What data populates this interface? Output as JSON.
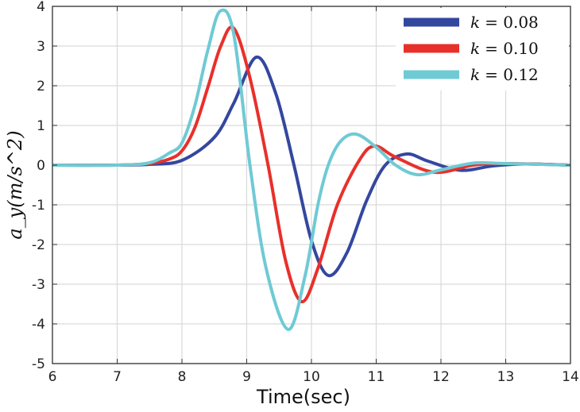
{
  "chart_data": {
    "type": "line",
    "title": "",
    "xlabel": "Time(sec)",
    "ylabel": "a_y(m/s^2)",
    "ylabel_parts": {
      "main": "a",
      "sub": "y",
      "unit": "(m/s",
      "sup": "2",
      "close": ")"
    },
    "xlim": [
      6,
      14
    ],
    "ylim": [
      -5,
      4
    ],
    "xticks": [
      6,
      7,
      8,
      9,
      10,
      11,
      12,
      13,
      14
    ],
    "yticks": [
      -5,
      -4,
      -3,
      -2,
      -1,
      0,
      1,
      2,
      3,
      4
    ],
    "grid": true,
    "legend_position": "top-right",
    "series": [
      {
        "name": "k = 0.08",
        "legend_var": "k",
        "legend_value": "= 0.08",
        "color": "#34479f",
        "x": [
          6,
          7,
          7.5,
          8,
          8.5,
          8.8,
          9.15,
          9.45,
          9.73,
          10.0,
          10.26,
          10.55,
          10.85,
          11.14,
          11.47,
          11.8,
          12.3,
          12.8,
          13.3,
          14
        ],
        "y": [
          0,
          0,
          0.02,
          0.12,
          0.7,
          1.56,
          2.72,
          1.8,
          0,
          -1.9,
          -2.78,
          -2.2,
          -0.9,
          0,
          0.28,
          0.1,
          -0.13,
          -0.02,
          0.03,
          0
        ]
      },
      {
        "name": "k = 0.10",
        "legend_var": "k",
        "legend_value": "= 0.10",
        "color": "#e8302b",
        "x": [
          6,
          7,
          7.5,
          7.8,
          8,
          8.2,
          8.4,
          8.6,
          8.8,
          9.05,
          9.33,
          9.6,
          9.85,
          10.1,
          10.4,
          10.75,
          10.98,
          11.3,
          11.9,
          12.5,
          13,
          14
        ],
        "y": [
          0,
          0,
          0.04,
          0.15,
          0.36,
          0.95,
          1.96,
          3.0,
          3.45,
          2.2,
          0,
          -2.4,
          -3.44,
          -2.6,
          -1.0,
          0.15,
          0.48,
          0.2,
          -0.18,
          0.0,
          0.04,
          0
        ]
      },
      {
        "name": "k = 0.12",
        "legend_var": "k",
        "legend_value": "= 0.12",
        "color": "#6fcad4",
        "x": [
          6,
          7,
          7.5,
          7.8,
          8,
          8.2,
          8.4,
          8.59,
          8.8,
          9.05,
          9.3,
          9.64,
          9.9,
          10.1,
          10.26,
          10.45,
          10.69,
          11.0,
          11.3,
          11.63,
          12.0,
          12.5,
          13,
          14
        ],
        "y": [
          0,
          0,
          0.06,
          0.3,
          0.56,
          1.5,
          2.9,
          3.88,
          3.3,
          0,
          -2.6,
          -4.14,
          -2.8,
          -1.0,
          0,
          0.6,
          0.78,
          0.45,
          0.0,
          -0.24,
          -0.12,
          0.05,
          0.04,
          0
        ]
      }
    ]
  }
}
